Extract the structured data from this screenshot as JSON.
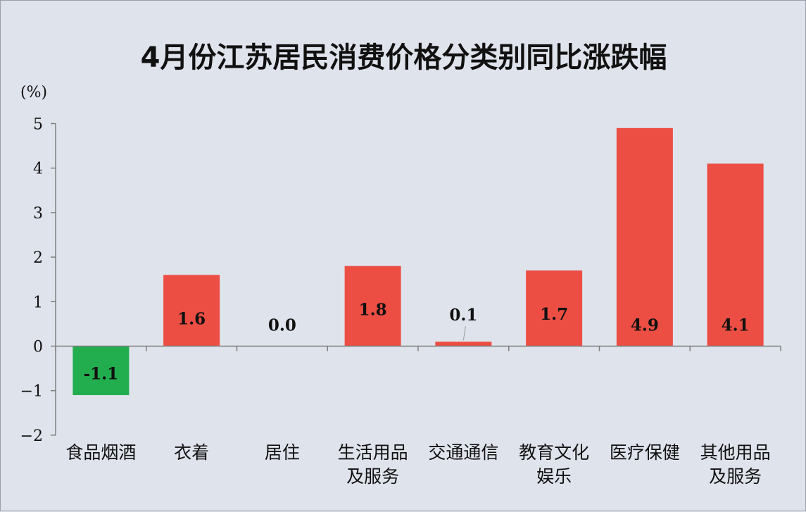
{
  "chart_data": {
    "type": "bar",
    "title": "4月份江苏居民消费价格分类别同比涨跌幅",
    "ylabel": "(%)",
    "ylim": [
      -2,
      5
    ],
    "yticks": [
      "−2",
      "−1",
      "0",
      "1",
      "2",
      "3",
      "4",
      "5"
    ],
    "categories": [
      [
        "食品烟酒"
      ],
      [
        "衣着"
      ],
      [
        "居住"
      ],
      [
        "生活用品",
        "及服务"
      ],
      [
        "交通通信"
      ],
      [
        "教育文化",
        "娱乐"
      ],
      [
        "医疗保健"
      ],
      [
        "其他用品",
        "及服务"
      ]
    ],
    "values": [
      -1.1,
      1.6,
      0.0,
      1.8,
      0.1,
      1.7,
      4.9,
      4.1
    ],
    "data_labels": [
      "-1.1",
      "1.6",
      "0.0",
      "1.8",
      "0.1",
      "1.7",
      "4.9",
      "4.1"
    ],
    "colors": {
      "positive": "#ec4e43",
      "negative": "#22ad4f",
      "axis": "#7f7f7f"
    },
    "grid": false,
    "legend": "none"
  }
}
